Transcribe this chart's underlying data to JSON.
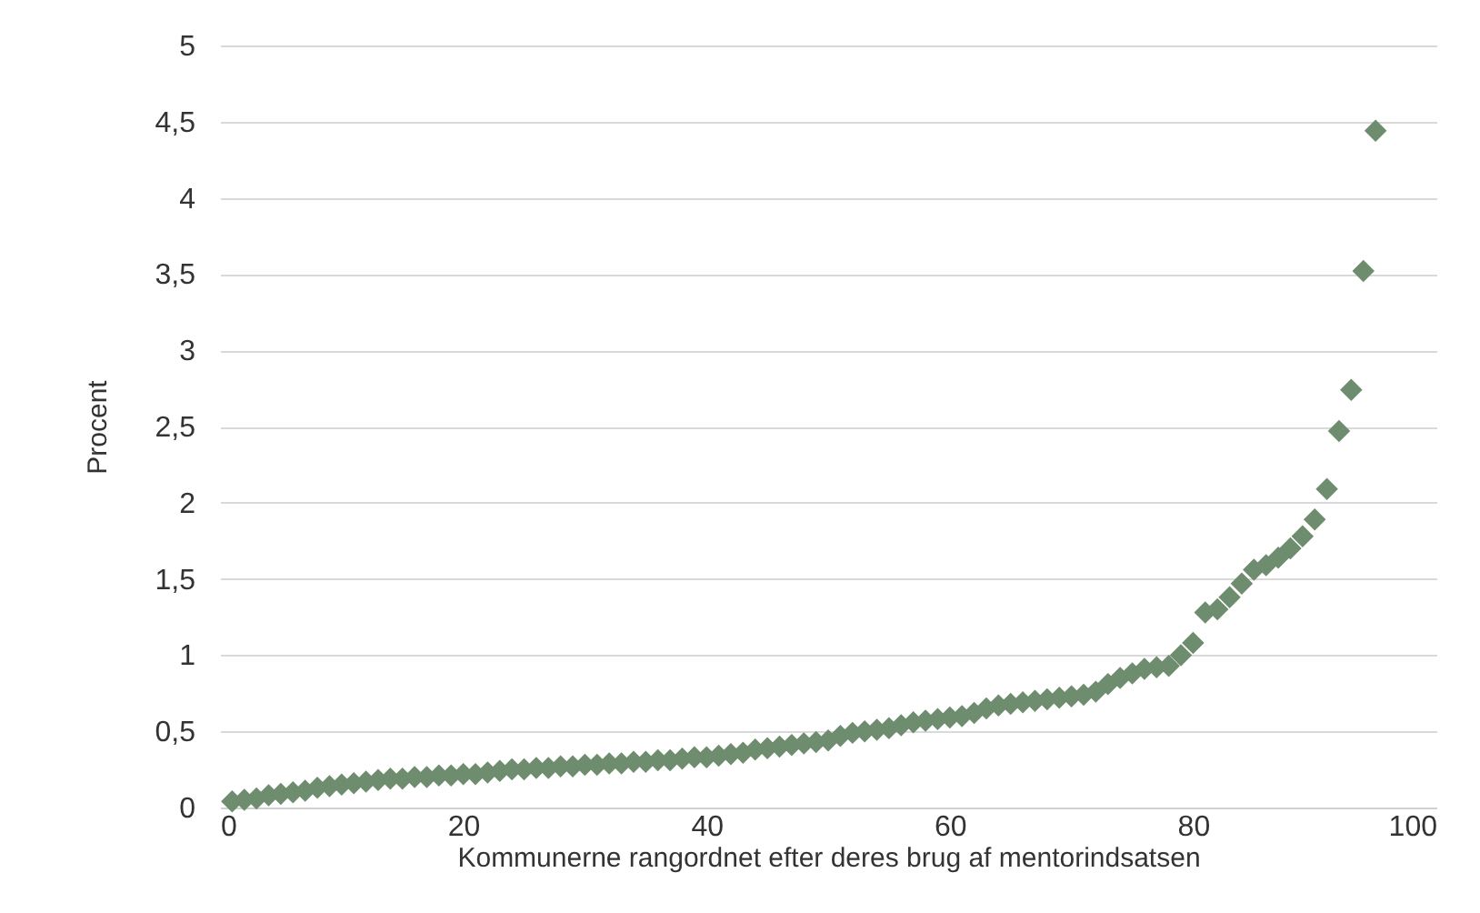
{
  "chart_data": {
    "type": "scatter",
    "xlabel": "Kommunerne rangordnet efter deres brug af mentorindsatsen",
    "ylabel": "Procent",
    "x": [
      1,
      2,
      3,
      4,
      5,
      6,
      7,
      8,
      9,
      10,
      11,
      12,
      13,
      14,
      15,
      16,
      17,
      18,
      19,
      20,
      21,
      22,
      23,
      24,
      25,
      26,
      27,
      28,
      29,
      30,
      31,
      32,
      33,
      34,
      35,
      36,
      37,
      38,
      39,
      40,
      41,
      42,
      43,
      44,
      45,
      46,
      47,
      48,
      49,
      50,
      51,
      52,
      53,
      54,
      55,
      56,
      57,
      58,
      59,
      60,
      61,
      62,
      63,
      64,
      65,
      66,
      67,
      68,
      69,
      70,
      71,
      72,
      73,
      74,
      75,
      76,
      77,
      78,
      79,
      80,
      81,
      82,
      83,
      84,
      85,
      86,
      87,
      88,
      89,
      90,
      91,
      92,
      93,
      94,
      95
    ],
    "series": [
      {
        "color": "#6e8c6e",
        "values": [
          0.04,
          0.05,
          0.06,
          0.08,
          0.09,
          0.1,
          0.11,
          0.13,
          0.14,
          0.15,
          0.16,
          0.17,
          0.18,
          0.19,
          0.19,
          0.2,
          0.2,
          0.21,
          0.21,
          0.22,
          0.22,
          0.23,
          0.24,
          0.25,
          0.25,
          0.26,
          0.26,
          0.27,
          0.27,
          0.28,
          0.28,
          0.29,
          0.29,
          0.3,
          0.3,
          0.31,
          0.31,
          0.32,
          0.33,
          0.33,
          0.34,
          0.35,
          0.36,
          0.38,
          0.39,
          0.4,
          0.41,
          0.42,
          0.43,
          0.44,
          0.47,
          0.49,
          0.5,
          0.51,
          0.52,
          0.54,
          0.56,
          0.57,
          0.58,
          0.59,
          0.6,
          0.62,
          0.65,
          0.67,
          0.68,
          0.69,
          0.7,
          0.71,
          0.72,
          0.73,
          0.74,
          0.76,
          0.81,
          0.85,
          0.88,
          0.91,
          0.92,
          0.93,
          1.0,
          1.08,
          1.28,
          1.3,
          1.38,
          1.47,
          1.56,
          1.59,
          1.64,
          1.7,
          1.78,
          1.89,
          2.09,
          2.47,
          2.74,
          3.52,
          4.44
        ]
      }
    ],
    "xlim": [
      0,
      100
    ],
    "xticks": [
      0,
      20,
      40,
      60,
      80,
      100
    ],
    "ylim": [
      0,
      5
    ],
    "yticks": [
      0,
      {
        "value": 0.5,
        "label": "0,5"
      },
      1,
      {
        "value": 1.5,
        "label": "1,5"
      },
      2,
      {
        "value": 2.5,
        "label": "2,5"
      },
      3,
      {
        "value": 3.5,
        "label": "3,5"
      },
      4,
      {
        "value": 4.5,
        "label": "4,5"
      },
      5
    ],
    "grid": "y",
    "marker": "diamond"
  }
}
